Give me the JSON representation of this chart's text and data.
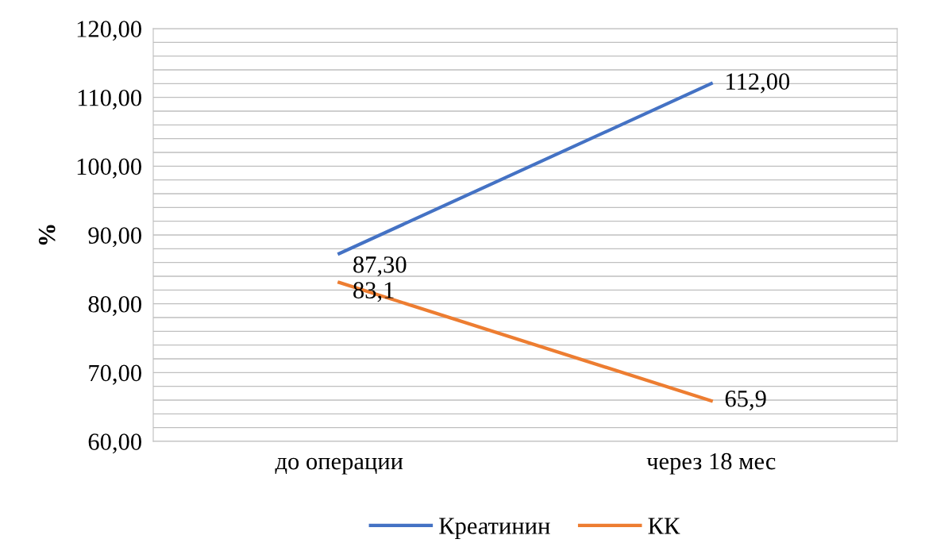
{
  "chart_data": {
    "type": "line",
    "ylabel": "%",
    "categories": [
      "до операции",
      "через 18 мес"
    ],
    "series": [
      {
        "name": "Креатинин",
        "color": "#4472c4",
        "values": [
          87.3,
          112.0
        ],
        "value_labels": [
          "87,30",
          "112,00"
        ]
      },
      {
        "name": "КК",
        "color": "#ed7d31",
        "values": [
          83.1,
          65.9
        ],
        "value_labels": [
          "83,1",
          "65,9"
        ]
      }
    ],
    "ylim": [
      60,
      120
    ],
    "yticks": [
      {
        "value": 60,
        "label": "60,00"
      },
      {
        "value": 62,
        "label": null
      },
      {
        "value": 64,
        "label": null
      },
      {
        "value": 66,
        "label": null
      },
      {
        "value": 68,
        "label": null
      },
      {
        "value": 70,
        "label": "70,00"
      },
      {
        "value": 72,
        "label": null
      },
      {
        "value": 74,
        "label": null
      },
      {
        "value": 76,
        "label": null
      },
      {
        "value": 78,
        "label": null
      },
      {
        "value": 80,
        "label": "80,00"
      },
      {
        "value": 82,
        "label": null
      },
      {
        "value": 84,
        "label": null
      },
      {
        "value": 86,
        "label": null
      },
      {
        "value": 88,
        "label": null
      },
      {
        "value": 90,
        "label": "90,00"
      },
      {
        "value": 92,
        "label": null
      },
      {
        "value": 94,
        "label": null
      },
      {
        "value": 96,
        "label": null
      },
      {
        "value": 98,
        "label": null
      },
      {
        "value": 100,
        "label": "100,00"
      },
      {
        "value": 102,
        "label": null
      },
      {
        "value": 104,
        "label": null
      },
      {
        "value": 106,
        "label": null
      },
      {
        "value": 108,
        "label": null
      },
      {
        "value": 110,
        "label": "110,00"
      },
      {
        "value": 112,
        "label": null
      },
      {
        "value": 114,
        "label": null
      },
      {
        "value": 116,
        "label": null
      },
      {
        "value": 118,
        "label": null
      },
      {
        "value": 120,
        "label": "120,00"
      }
    ],
    "grid": "y",
    "legend": "bottom",
    "marker": "none",
    "line_style": "solid"
  }
}
